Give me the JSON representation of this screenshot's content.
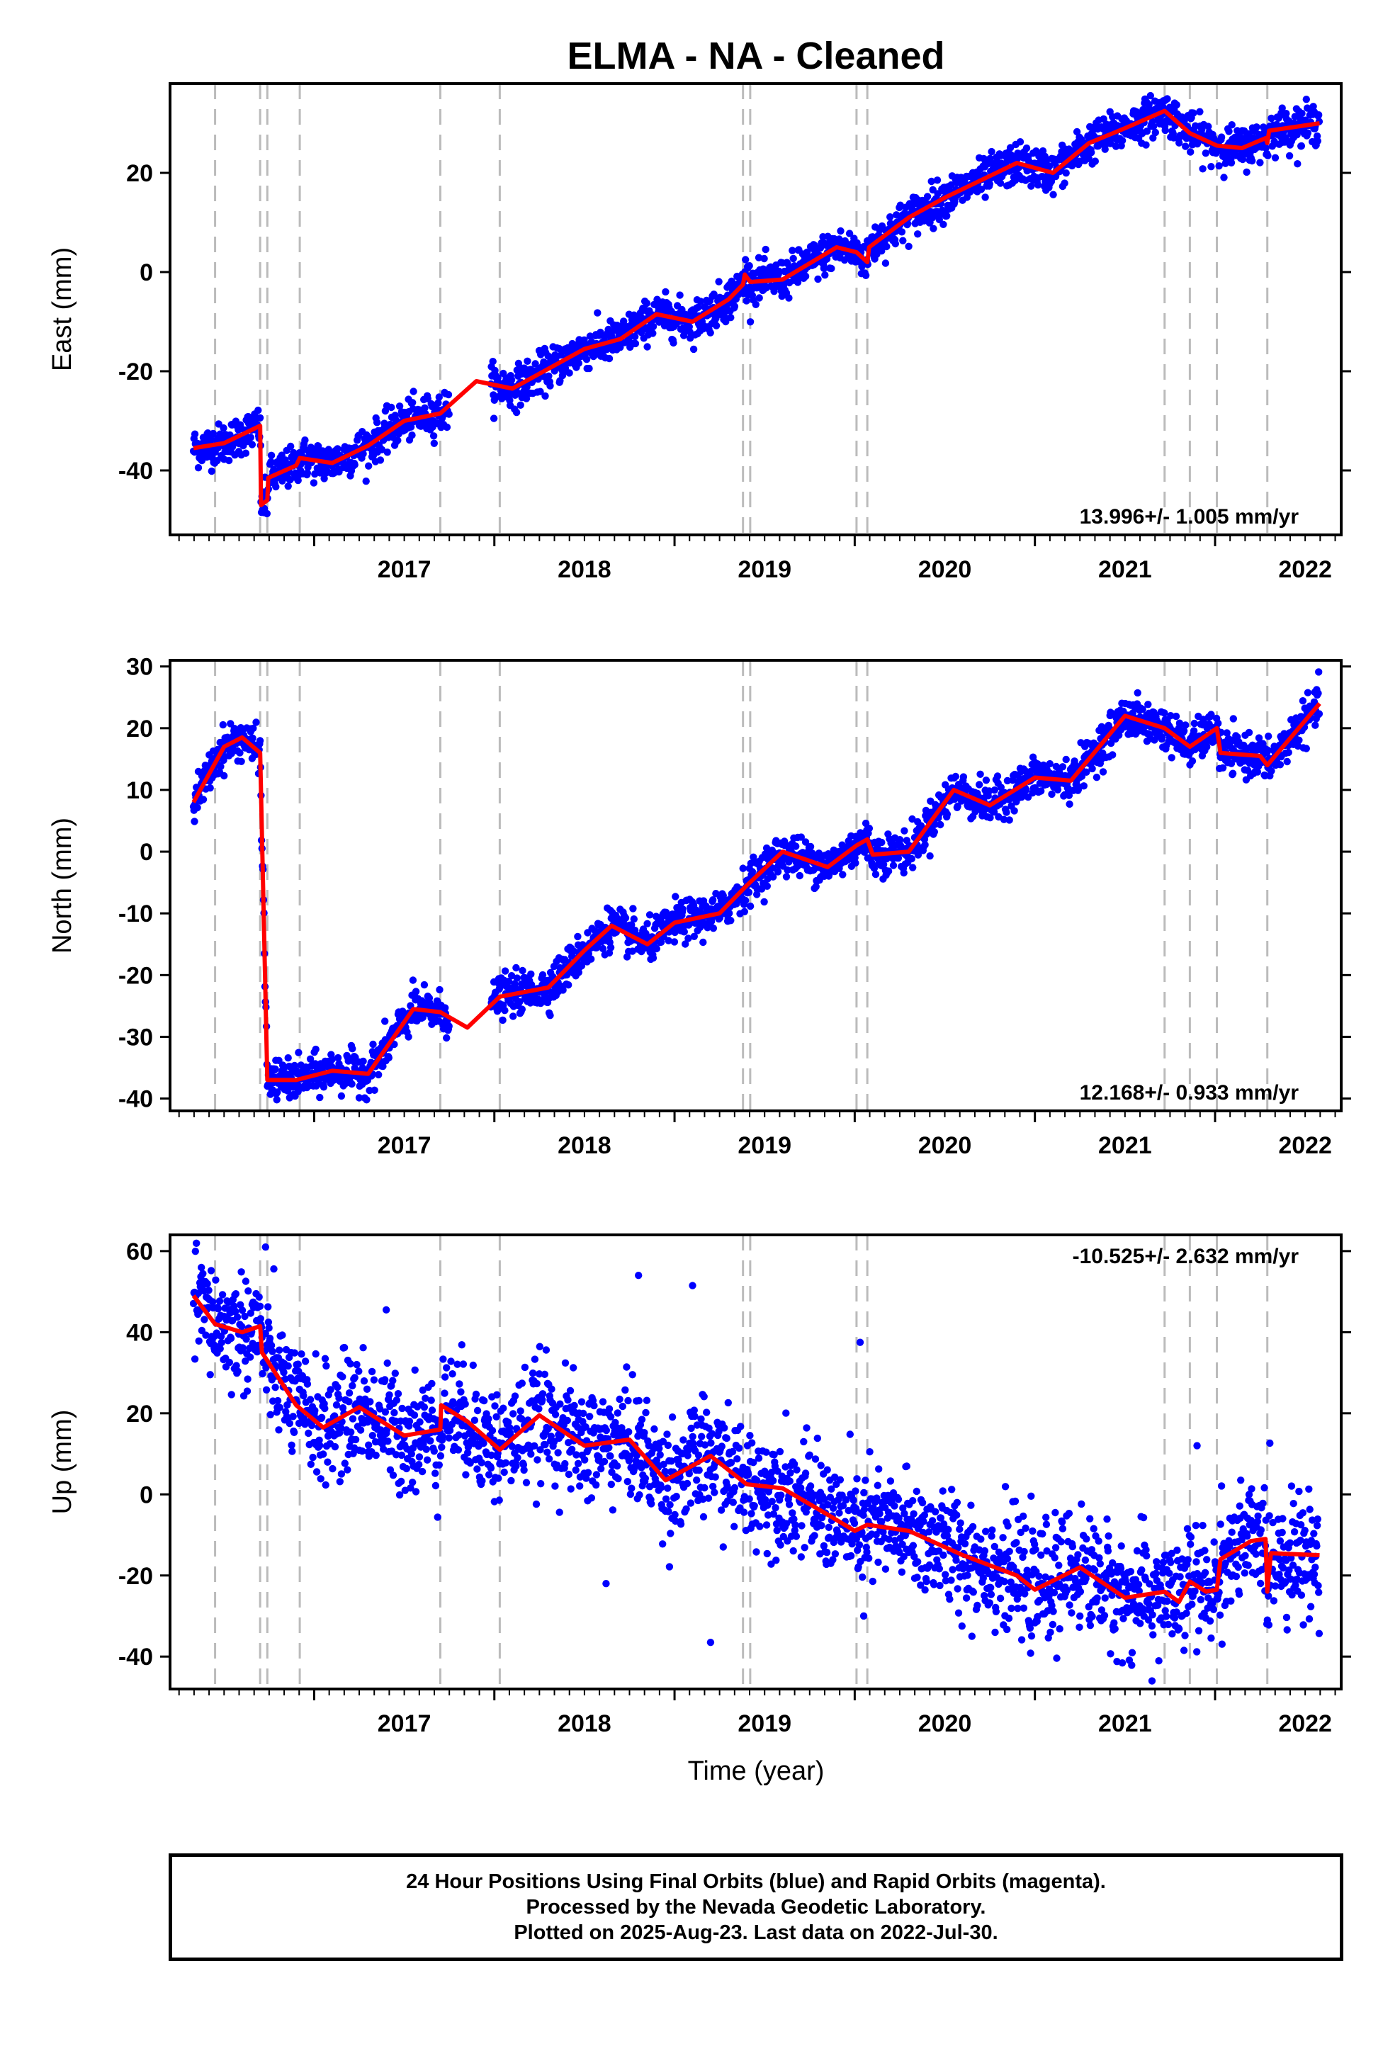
{
  "chart_data": {
    "title": "ELMA  - NA - Cleaned",
    "xlabel": "Time (year)",
    "xlim": [
      2016.2,
      2022.7
    ],
    "x_ticks": [
      2017,
      2018,
      2019,
      2020,
      2021,
      2022
    ],
    "equipment_changes": [
      2016.45,
      2016.7,
      2016.74,
      2016.92,
      2017.7,
      2018.03,
      2019.38,
      2019.42,
      2020.01,
      2020.07,
      2021.72,
      2021.86,
      2022.01,
      2022.29
    ],
    "caption": [
      "24 Hour Positions Using Final Orbits (blue) and Rapid Orbits (magenta).",
      "Processed by the Nevada Geodetic Laboratory.",
      "Plotted on 2025-Aug-23. Last data on 2022-Jul-30."
    ],
    "colors": {
      "points": "#0000ff",
      "model": "#ff0000",
      "breaks": "#bbbbbb",
      "axis": "#000000"
    },
    "panels": [
      {
        "type": "scatter",
        "ylabel": "East (mm)",
        "ylim": [
          -53,
          38
        ],
        "y_ticks": [
          -40,
          -20,
          0,
          20
        ],
        "rate_text": "13.996+/- 1.005 mm/yr",
        "rate_position": "bottom-right",
        "noise": 2.0,
        "model": [
          [
            2016.33,
            -35.5
          ],
          [
            2016.5,
            -34.5
          ],
          [
            2016.7,
            -31.0
          ],
          [
            2016.705,
            -47.0
          ],
          [
            2016.74,
            -46.0
          ],
          [
            2016.745,
            -41.5
          ],
          [
            2016.9,
            -39.0
          ],
          [
            2016.92,
            -37.5
          ],
          [
            2017.1,
            -38.5
          ],
          [
            2017.3,
            -35.0
          ],
          [
            2017.5,
            -30.0
          ],
          [
            2017.7,
            -28.5
          ],
          [
            2017.9,
            -22.0
          ],
          [
            2018.1,
            -23.5
          ],
          [
            2018.3,
            -19.5
          ],
          [
            2018.5,
            -15.5
          ],
          [
            2018.7,
            -13.5
          ],
          [
            2018.9,
            -8.5
          ],
          [
            2019.1,
            -10.0
          ],
          [
            2019.3,
            -5.5
          ],
          [
            2019.38,
            -2.5
          ],
          [
            2019.39,
            -0.5
          ],
          [
            2019.42,
            -2.0
          ],
          [
            2019.6,
            -1.5
          ],
          [
            2019.9,
            5.0
          ],
          [
            2020.01,
            4.0
          ],
          [
            2020.07,
            2.0
          ],
          [
            2020.08,
            5.0
          ],
          [
            2020.3,
            11.0
          ],
          [
            2020.5,
            15.0
          ],
          [
            2020.7,
            18.5
          ],
          [
            2020.9,
            22.0
          ],
          [
            2021.1,
            20.0
          ],
          [
            2021.3,
            26.0
          ],
          [
            2021.5,
            29.0
          ],
          [
            2021.72,
            32.5
          ],
          [
            2021.86,
            28.0
          ],
          [
            2022.01,
            25.5
          ],
          [
            2022.15,
            25.0
          ],
          [
            2022.28,
            27.0
          ],
          [
            2022.29,
            26.0
          ],
          [
            2022.3,
            28.5
          ],
          [
            2022.58,
            30.0
          ]
        ]
      },
      {
        "type": "scatter",
        "ylabel": "North (mm)",
        "ylim": [
          -42,
          31
        ],
        "y_ticks": [
          -40,
          -30,
          -20,
          -10,
          0,
          10,
          20,
          30
        ],
        "rate_text": "12.168+/- 0.933 mm/yr",
        "rate_position": "bottom-right",
        "noise": 1.6,
        "model": [
          [
            2016.33,
            8.0
          ],
          [
            2016.5,
            17.0
          ],
          [
            2016.6,
            18.5
          ],
          [
            2016.7,
            16.0
          ],
          [
            2016.74,
            -37.0
          ],
          [
            2016.9,
            -37.0
          ],
          [
            2017.1,
            -35.5
          ],
          [
            2017.3,
            -36.0
          ],
          [
            2017.55,
            -25.5
          ],
          [
            2017.7,
            -26.0
          ],
          [
            2017.85,
            -28.5
          ],
          [
            2018.03,
            -23.5
          ],
          [
            2018.3,
            -22.0
          ],
          [
            2018.5,
            -16.0
          ],
          [
            2018.65,
            -12.0
          ],
          [
            2018.85,
            -15.0
          ],
          [
            2019.0,
            -11.5
          ],
          [
            2019.25,
            -10.0
          ],
          [
            2019.4,
            -5.5
          ],
          [
            2019.6,
            0.0
          ],
          [
            2019.85,
            -2.5
          ],
          [
            2020.01,
            1.0
          ],
          [
            2020.07,
            2.0
          ],
          [
            2020.1,
            -0.5
          ],
          [
            2020.3,
            0.0
          ],
          [
            2020.55,
            10.0
          ],
          [
            2020.75,
            7.5
          ],
          [
            2021.0,
            12.0
          ],
          [
            2021.2,
            11.5
          ],
          [
            2021.5,
            22.0
          ],
          [
            2021.72,
            20.0
          ],
          [
            2021.86,
            17.0
          ],
          [
            2022.01,
            20.0
          ],
          [
            2022.03,
            16.0
          ],
          [
            2022.25,
            15.5
          ],
          [
            2022.29,
            14.0
          ],
          [
            2022.58,
            24.0
          ]
        ]
      },
      {
        "type": "scatter",
        "ylabel": "Up (mm)",
        "ylim": [
          -48,
          64
        ],
        "y_ticks": [
          -40,
          -20,
          0,
          20,
          40,
          60
        ],
        "rate_text": "-10.525+/- 2.632 mm/yr",
        "rate_position": "top-right",
        "noise": 7.0,
        "model": [
          [
            2016.33,
            49.0
          ],
          [
            2016.45,
            42.0
          ],
          [
            2016.6,
            40.0
          ],
          [
            2016.7,
            41.5
          ],
          [
            2016.71,
            35.0
          ],
          [
            2016.74,
            33.0
          ],
          [
            2016.9,
            22.0
          ],
          [
            2017.05,
            16.5
          ],
          [
            2017.25,
            21.5
          ],
          [
            2017.5,
            14.5
          ],
          [
            2017.7,
            16.0
          ],
          [
            2017.705,
            22.0
          ],
          [
            2017.85,
            18.0
          ],
          [
            2018.03,
            11.0
          ],
          [
            2018.25,
            19.5
          ],
          [
            2018.5,
            12.0
          ],
          [
            2018.75,
            13.5
          ],
          [
            2018.95,
            3.5
          ],
          [
            2019.2,
            9.5
          ],
          [
            2019.4,
            2.5
          ],
          [
            2019.6,
            1.5
          ],
          [
            2019.85,
            -5.0
          ],
          [
            2020.0,
            -9.0
          ],
          [
            2020.07,
            -7.5
          ],
          [
            2020.3,
            -9.0
          ],
          [
            2020.6,
            -15.0
          ],
          [
            2020.9,
            -20.0
          ],
          [
            2021.0,
            -23.5
          ],
          [
            2021.25,
            -18.0
          ],
          [
            2021.5,
            -25.5
          ],
          [
            2021.72,
            -24.0
          ],
          [
            2021.8,
            -26.5
          ],
          [
            2021.86,
            -21.5
          ],
          [
            2021.95,
            -24.0
          ],
          [
            2022.01,
            -23.5
          ],
          [
            2022.03,
            -16.0
          ],
          [
            2022.2,
            -11.5
          ],
          [
            2022.28,
            -11.0
          ],
          [
            2022.29,
            -24.0
          ],
          [
            2022.31,
            -14.5
          ],
          [
            2022.58,
            -15.0
          ]
        ],
        "outliers": [
          [
            2016.73,
            61.0
          ],
          [
            2017.4,
            45.5
          ],
          [
            2018.8,
            54.0
          ],
          [
            2019.1,
            51.5
          ],
          [
            2020.03,
            37.5
          ],
          [
            2018.62,
            -22.0
          ],
          [
            2019.2,
            -36.5
          ],
          [
            2020.05,
            -30.0
          ],
          [
            2021.65,
            -46.0
          ],
          [
            2021.9,
            12.0
          ]
        ]
      }
    ]
  }
}
